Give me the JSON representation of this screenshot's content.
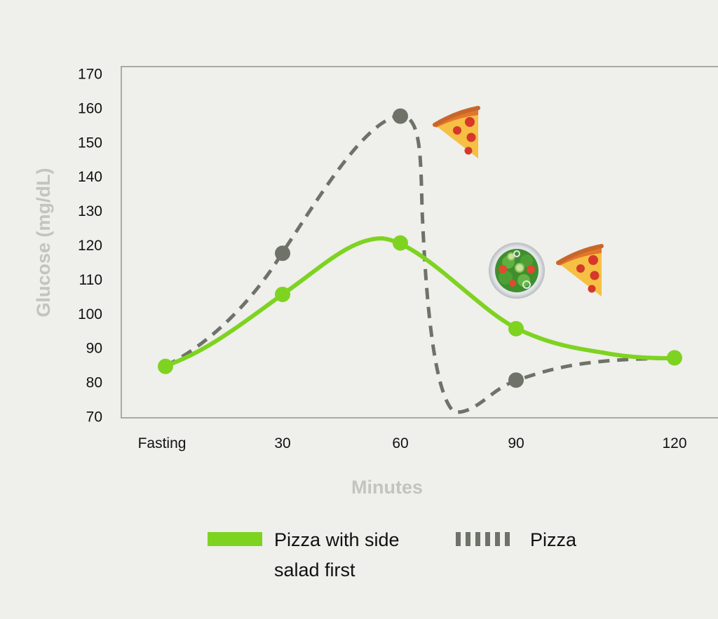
{
  "chart_data": {
    "type": "line",
    "xlabel": "Minutes",
    "ylabel": "Glucose (mg/dL)",
    "categories": [
      "Fasting",
      "30",
      "60",
      "90",
      "120"
    ],
    "ylim": [
      70,
      170
    ],
    "yticks": [
      70,
      80,
      90,
      100,
      110,
      120,
      130,
      140,
      150,
      160,
      170
    ],
    "grid": false,
    "legend_position": "bottom",
    "series": [
      {
        "name": "Pizza with side salad first",
        "legend_lines": [
          "Pizza with side",
          "salad first"
        ],
        "style": "solid",
        "color": "#7ed321",
        "values": [
          85,
          106,
          121,
          96,
          87.5
        ]
      },
      {
        "name": "Pizza",
        "legend_lines": [
          "Pizza"
        ],
        "style": "dashed",
        "color": "#6e7268",
        "values": [
          85,
          118,
          158,
          81,
          87.5
        ]
      }
    ],
    "annotations": [
      {
        "icon": "pizza-icon",
        "series": "Pizza"
      },
      {
        "icon": "salad-icon",
        "series": "Pizza with side salad first"
      },
      {
        "icon": "pizza-icon",
        "series": "Pizza with side salad first"
      }
    ]
  }
}
